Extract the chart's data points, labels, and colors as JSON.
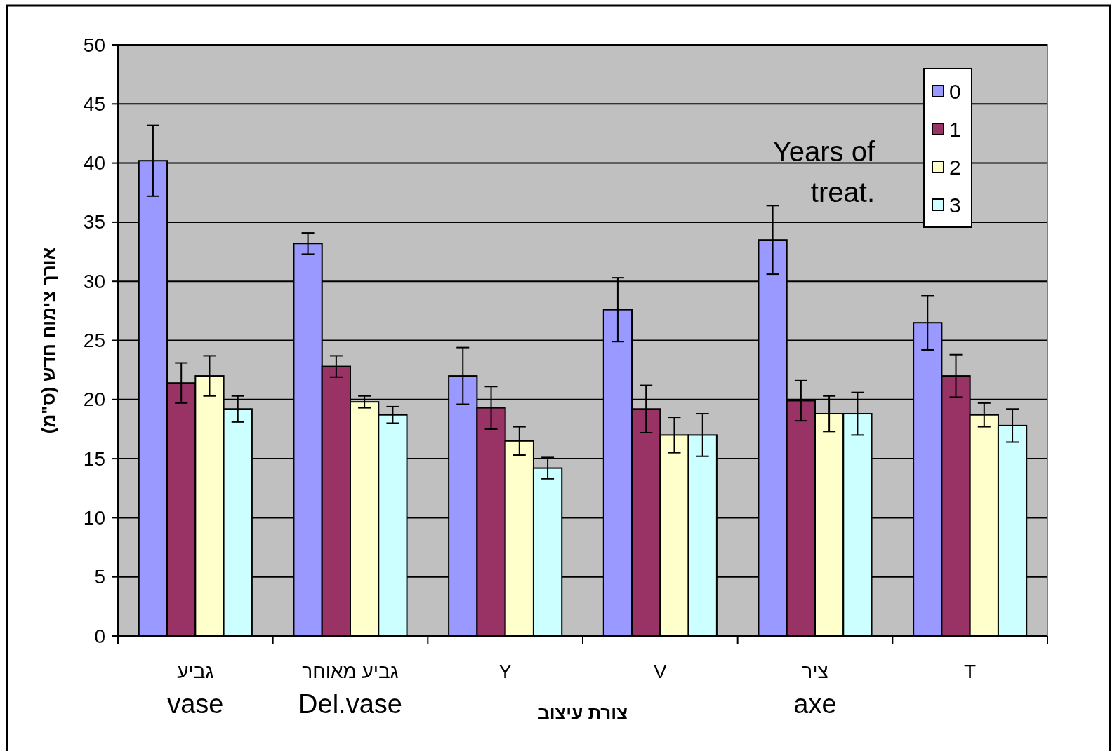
{
  "chart_data": {
    "type": "bar",
    "ylabel": "אורך צימוח חדש (ס\"מ)",
    "xlabel": "צורת עיצוב",
    "legend_title": "Years of\ntreat.",
    "categories": [
      "גביע\nvase",
      "גביע מאוחר\nDel.vase",
      "Y",
      "V",
      "ציר\naxe",
      "T"
    ],
    "series": [
      {
        "name": "0",
        "color": "#9999ff",
        "values": [
          40.2,
          33.2,
          22.0,
          27.6,
          33.5,
          26.5
        ],
        "errors": [
          3.0,
          0.9,
          2.4,
          2.7,
          2.9,
          2.3
        ]
      },
      {
        "name": "1",
        "color": "#993366",
        "values": [
          21.4,
          22.8,
          19.3,
          19.2,
          19.9,
          22.0
        ],
        "errors": [
          1.7,
          0.9,
          1.8,
          2.0,
          1.7,
          1.8
        ]
      },
      {
        "name": "2",
        "color": "#ffffcc",
        "values": [
          22.0,
          19.8,
          16.5,
          17.0,
          18.8,
          18.7
        ],
        "errors": [
          1.7,
          0.5,
          1.2,
          1.5,
          1.5,
          1.0
        ]
      },
      {
        "name": "3",
        "color": "#ccffff",
        "values": [
          19.2,
          18.7,
          14.2,
          17.0,
          18.8,
          17.8
        ],
        "errors": [
          1.1,
          0.7,
          0.9,
          1.8,
          1.8,
          1.4
        ]
      }
    ],
    "ylim": [
      0,
      50
    ],
    "yticks": [
      0,
      5,
      10,
      15,
      20,
      25,
      30,
      35,
      40,
      45,
      50
    ],
    "grid": "y",
    "legend": "top right"
  }
}
